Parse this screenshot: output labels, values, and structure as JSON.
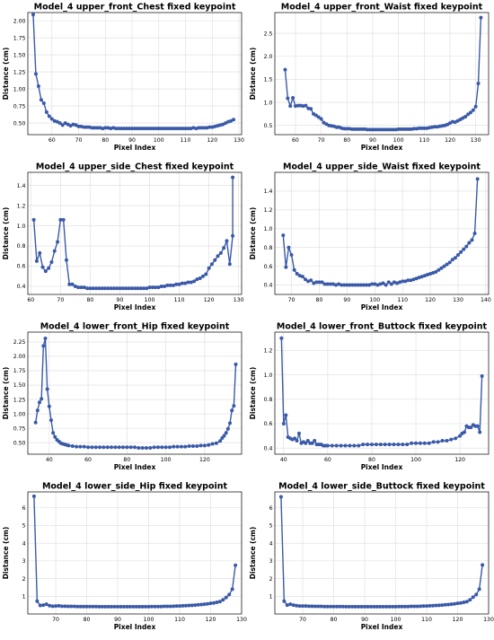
{
  "chart_data": [
    {
      "type": "line",
      "title": "Model_4 upper_front_Chest fixed keypoint",
      "xlabel": "Pixel Index",
      "ylabel": "Distance (cm)",
      "xlim": [
        51,
        131
      ],
      "ylim": [
        0.33,
        2.12
      ],
      "xticks": [
        50,
        60,
        70,
        80,
        90,
        100,
        110,
        120,
        130
      ],
      "yticks": [
        0.5,
        0.75,
        1.0,
        1.25,
        1.5,
        1.75,
        2.0
      ],
      "ytick_labels": [
        "0.50",
        "0.75",
        "1.00",
        "1.25",
        "1.50",
        "1.75",
        "2.00"
      ],
      "grid": true,
      "x": [
        53,
        54,
        55,
        56,
        57,
        58,
        59,
        60,
        61,
        62,
        63,
        64,
        65,
        66,
        67,
        68,
        69,
        70,
        71,
        72,
        73,
        74,
        75,
        76,
        77,
        78,
        79,
        80,
        81,
        82,
        83,
        84,
        85,
        86,
        87,
        88,
        89,
        90,
        91,
        92,
        93,
        94,
        95,
        96,
        97,
        98,
        99,
        100,
        101,
        102,
        103,
        104,
        105,
        106,
        107,
        108,
        109,
        110,
        111,
        112,
        113,
        114,
        115,
        116,
        117,
        118,
        119,
        120,
        121,
        122,
        123,
        124,
        125,
        126,
        127,
        128
      ],
      "y": [
        2.09,
        1.22,
        1.04,
        0.84,
        0.79,
        0.66,
        0.6,
        0.56,
        0.53,
        0.52,
        0.5,
        0.47,
        0.5,
        0.48,
        0.46,
        0.48,
        0.47,
        0.45,
        0.45,
        0.44,
        0.44,
        0.44,
        0.43,
        0.43,
        0.43,
        0.43,
        0.42,
        0.43,
        0.43,
        0.42,
        0.43,
        0.42,
        0.42,
        0.42,
        0.42,
        0.42,
        0.42,
        0.42,
        0.42,
        0.42,
        0.42,
        0.42,
        0.42,
        0.42,
        0.42,
        0.42,
        0.42,
        0.42,
        0.42,
        0.42,
        0.42,
        0.42,
        0.42,
        0.42,
        0.42,
        0.42,
        0.42,
        0.42,
        0.42,
        0.42,
        0.43,
        0.42,
        0.43,
        0.43,
        0.43,
        0.43,
        0.44,
        0.44,
        0.45,
        0.46,
        0.47,
        0.48,
        0.5,
        0.52,
        0.53,
        0.55
      ]
    },
    {
      "type": "line",
      "title": "Model_4 upper_front_Waist fixed keypoint",
      "xlabel": "Pixel Index",
      "ylabel": "Distance (cm)",
      "xlim": [
        52,
        135
      ],
      "ylim": [
        0.3,
        2.95
      ],
      "xticks": [
        60,
        70,
        80,
        90,
        100,
        110,
        120,
        130
      ],
      "yticks": [
        0.5,
        1.0,
        1.5,
        2.0,
        2.5
      ],
      "ytick_labels": [
        "0.5",
        "1.0",
        "1.5",
        "2.0",
        "2.5"
      ],
      "grid": true,
      "x": [
        56,
        57,
        58,
        59,
        60,
        61,
        62,
        63,
        64,
        65,
        66,
        67,
        68,
        69,
        70,
        71,
        72,
        73,
        74,
        75,
        76,
        77,
        78,
        79,
        80,
        81,
        82,
        83,
        84,
        85,
        86,
        87,
        88,
        89,
        90,
        91,
        92,
        93,
        94,
        95,
        96,
        97,
        98,
        99,
        100,
        101,
        102,
        103,
        104,
        105,
        106,
        107,
        108,
        109,
        110,
        111,
        112,
        113,
        114,
        115,
        116,
        117,
        118,
        119,
        120,
        121,
        122,
        123,
        124,
        125,
        126,
        127,
        128,
        129,
        130,
        131,
        132
      ],
      "y": [
        1.71,
        1.09,
        0.92,
        1.1,
        0.92,
        0.93,
        0.93,
        0.92,
        0.93,
        0.87,
        0.86,
        0.75,
        0.72,
        0.68,
        0.64,
        0.56,
        0.53,
        0.5,
        0.49,
        0.48,
        0.46,
        0.46,
        0.44,
        0.43,
        0.43,
        0.43,
        0.42,
        0.42,
        0.42,
        0.42,
        0.42,
        0.42,
        0.41,
        0.41,
        0.41,
        0.41,
        0.41,
        0.41,
        0.41,
        0.41,
        0.41,
        0.41,
        0.41,
        0.41,
        0.42,
        0.42,
        0.42,
        0.42,
        0.42,
        0.42,
        0.43,
        0.43,
        0.44,
        0.44,
        0.44,
        0.44,
        0.45,
        0.46,
        0.47,
        0.47,
        0.48,
        0.49,
        0.5,
        0.52,
        0.55,
        0.58,
        0.57,
        0.6,
        0.63,
        0.66,
        0.69,
        0.74,
        0.78,
        0.83,
        0.91,
        1.41,
        2.84
      ]
    },
    {
      "type": "line",
      "title": "Model_4 upper_side_Chest fixed keypoint",
      "xlabel": "Pixel Index",
      "ylabel": "Distance (cm)",
      "xlim": [
        59,
        131
      ],
      "ylim": [
        0.32,
        1.53
      ],
      "xticks": [
        60,
        70,
        80,
        90,
        100,
        110,
        120,
        130
      ],
      "yticks": [
        0.4,
        0.6,
        0.8,
        1.0,
        1.2,
        1.4
      ],
      "ytick_labels": [
        "0.4",
        "0.6",
        "0.8",
        "1.0",
        "1.2",
        "1.4"
      ],
      "grid": true,
      "x": [
        61,
        62,
        63,
        64,
        65,
        66,
        67,
        68,
        69,
        70,
        71,
        72,
        73,
        74,
        75,
        76,
        77,
        78,
        79,
        80,
        81,
        82,
        83,
        84,
        85,
        86,
        87,
        88,
        89,
        90,
        91,
        92,
        93,
        94,
        95,
        96,
        97,
        98,
        99,
        100,
        101,
        102,
        103,
        104,
        105,
        106,
        107,
        108,
        109,
        110,
        111,
        112,
        113,
        114,
        115,
        116,
        117,
        118,
        119,
        120,
        121,
        122,
        123,
        124,
        125,
        126,
        127,
        128
      ],
      "y": [
        1.06,
        0.65,
        0.73,
        0.59,
        0.55,
        0.58,
        0.64,
        0.75,
        0.84,
        1.06,
        1.06,
        0.66,
        0.42,
        0.42,
        0.4,
        0.39,
        0.39,
        0.39,
        0.38,
        0.38,
        0.38,
        0.38,
        0.38,
        0.38,
        0.38,
        0.38,
        0.38,
        0.38,
        0.38,
        0.38,
        0.38,
        0.38,
        0.38,
        0.38,
        0.38,
        0.38,
        0.38,
        0.38,
        0.38,
        0.39,
        0.39,
        0.39,
        0.39,
        0.4,
        0.4,
        0.41,
        0.41,
        0.41,
        0.42,
        0.42,
        0.43,
        0.43,
        0.44,
        0.44,
        0.45,
        0.47,
        0.48,
        0.5,
        0.52,
        0.58,
        0.62,
        0.66,
        0.7,
        0.73,
        0.78,
        0.85,
        0.62,
        0.9
      ],
      "y_last": 1.48
    },
    {
      "type": "line",
      "title": "Model_4 upper_side_Waist fixed keypoint",
      "xlabel": "Pixel Index",
      "ylabel": "Distance (cm)",
      "xlim": [
        64,
        141
      ],
      "ylim": [
        0.3,
        1.6
      ],
      "xticks": [
        70,
        80,
        90,
        100,
        110,
        120,
        130,
        140
      ],
      "yticks": [
        0.4,
        0.6,
        0.8,
        1.0,
        1.2,
        1.4
      ],
      "ytick_labels": [
        "0.4",
        "0.6",
        "0.8",
        "1.0",
        "1.2",
        "1.4"
      ],
      "grid": true,
      "x": [
        67,
        68,
        69,
        70,
        71,
        72,
        73,
        74,
        75,
        76,
        77,
        78,
        79,
        80,
        81,
        82,
        83,
        84,
        85,
        86,
        87,
        88,
        89,
        90,
        91,
        92,
        93,
        94,
        95,
        96,
        97,
        98,
        99,
        100,
        101,
        102,
        103,
        104,
        105,
        106,
        107,
        108,
        109,
        110,
        111,
        112,
        113,
        114,
        115,
        116,
        117,
        118,
        119,
        120,
        121,
        122,
        123,
        124,
        125,
        126,
        127,
        128,
        129,
        130,
        131,
        132,
        133,
        134,
        135,
        136,
        137
      ],
      "y": [
        0.93,
        0.59,
        0.8,
        0.72,
        0.56,
        0.52,
        0.5,
        0.49,
        0.46,
        0.44,
        0.45,
        0.42,
        0.43,
        0.43,
        0.43,
        0.41,
        0.41,
        0.41,
        0.41,
        0.4,
        0.41,
        0.4,
        0.4,
        0.4,
        0.4,
        0.4,
        0.4,
        0.4,
        0.4,
        0.4,
        0.4,
        0.4,
        0.41,
        0.41,
        0.4,
        0.41,
        0.42,
        0.4,
        0.43,
        0.41,
        0.43,
        0.42,
        0.43,
        0.44,
        0.44,
        0.45,
        0.45,
        0.46,
        0.47,
        0.48,
        0.49,
        0.5,
        0.51,
        0.52,
        0.53,
        0.54,
        0.56,
        0.58,
        0.6,
        0.62,
        0.64,
        0.67,
        0.69,
        0.72,
        0.75,
        0.78,
        0.81,
        0.85,
        0.88,
        0.95,
        1.53
      ]
    },
    {
      "type": "line",
      "title": "Model_4 lower_front_Hip fixed keypoint",
      "xlabel": "Pixel Index",
      "ylabel": "Distance (cm)",
      "xlim": [
        29,
        139
      ],
      "ylim": [
        0.3,
        2.42
      ],
      "xticks": [
        40,
        60,
        80,
        100,
        120
      ],
      "yticks": [
        0.5,
        0.75,
        1.0,
        1.25,
        1.5,
        1.75,
        2.0,
        2.25
      ],
      "ytick_labels": [
        "0.50",
        "0.75",
        "1.00",
        "1.25",
        "1.50",
        "1.75",
        "2.00",
        "2.25"
      ],
      "grid": true,
      "x": [
        33,
        34,
        35,
        36,
        37,
        38,
        39,
        40,
        41,
        42,
        43,
        44,
        45,
        46,
        47,
        48,
        49,
        50,
        52,
        54,
        56,
        58,
        60,
        62,
        64,
        66,
        68,
        70,
        72,
        74,
        76,
        78,
        80,
        82,
        84,
        86,
        88,
        90,
        92,
        94,
        96,
        98,
        100,
        102,
        104,
        106,
        108,
        110,
        112,
        114,
        116,
        118,
        120,
        122,
        124,
        126,
        128,
        129,
        130,
        131,
        132,
        133,
        134,
        135,
        136
      ],
      "y": [
        0.85,
        1.06,
        1.2,
        1.26,
        2.18,
        2.31,
        1.43,
        1.13,
        0.89,
        0.67,
        0.6,
        0.55,
        0.52,
        0.49,
        0.48,
        0.47,
        0.46,
        0.45,
        0.44,
        0.43,
        0.43,
        0.43,
        0.42,
        0.42,
        0.42,
        0.42,
        0.42,
        0.42,
        0.42,
        0.42,
        0.42,
        0.42,
        0.42,
        0.42,
        0.42,
        0.41,
        0.41,
        0.41,
        0.41,
        0.42,
        0.42,
        0.42,
        0.42,
        0.42,
        0.43,
        0.43,
        0.43,
        0.43,
        0.44,
        0.44,
        0.44,
        0.45,
        0.45,
        0.46,
        0.48,
        0.49,
        0.53,
        0.58,
        0.62,
        0.67,
        0.74,
        0.84,
        1.06,
        1.14,
        1.86
      ]
    },
    {
      "type": "line",
      "title": "Model_4 lower_front_Buttock fixed keypoint",
      "xlabel": "Pixel Index",
      "ylabel": "Distance (cm)",
      "xlim": [
        36,
        133
      ],
      "ylim": [
        0.35,
        1.35
      ],
      "xticks": [
        40,
        60,
        80,
        100,
        120
      ],
      "yticks": [
        0.4,
        0.6,
        0.8,
        1.0,
        1.2
      ],
      "ytick_labels": [
        "0.4",
        "0.6",
        "0.8",
        "1.0",
        "1.2"
      ],
      "grid": true,
      "x": [
        39,
        40,
        41,
        42,
        43,
        44,
        45,
        46,
        47,
        48,
        49,
        50,
        51,
        52,
        53,
        54,
        55,
        56,
        57,
        58,
        59,
        60,
        62,
        64,
        66,
        68,
        70,
        72,
        74,
        76,
        78,
        80,
        82,
        84,
        86,
        88,
        90,
        92,
        94,
        96,
        98,
        100,
        102,
        104,
        106,
        108,
        110,
        112,
        114,
        116,
        118,
        120,
        121,
        122,
        123,
        124,
        125,
        126,
        127,
        128,
        129,
        130
      ],
      "y": [
        1.3,
        0.6,
        0.67,
        0.49,
        0.48,
        0.47,
        0.48,
        0.46,
        0.52,
        0.44,
        0.45,
        0.44,
        0.46,
        0.44,
        0.44,
        0.46,
        0.43,
        0.43,
        0.43,
        0.42,
        0.42,
        0.42,
        0.42,
        0.42,
        0.42,
        0.42,
        0.42,
        0.42,
        0.42,
        0.43,
        0.43,
        0.43,
        0.43,
        0.43,
        0.43,
        0.43,
        0.43,
        0.43,
        0.43,
        0.43,
        0.44,
        0.44,
        0.44,
        0.44,
        0.44,
        0.45,
        0.45,
        0.46,
        0.46,
        0.47,
        0.48,
        0.5,
        0.52,
        0.53,
        0.58,
        0.57,
        0.57,
        0.59,
        0.58,
        0.58,
        0.53,
        0.99
      ]
    },
    {
      "type": "line",
      "title": "Model_4 lower_side_Hip fixed keypoint",
      "xlabel": "Pixel Index",
      "ylabel": "Distance (cm)",
      "xlim": [
        61,
        130
      ],
      "ylim": [
        0.0,
        6.9
      ],
      "xticks": [
        60,
        70,
        80,
        90,
        100,
        110,
        120,
        130
      ],
      "yticks": [
        1,
        2,
        3,
        4,
        5,
        6
      ],
      "ytick_labels": [
        "1",
        "2",
        "3",
        "4",
        "5",
        "6"
      ],
      "grid": true,
      "x": [
        63,
        64,
        65,
        66,
        67,
        68,
        69,
        70,
        71,
        72,
        73,
        74,
        75,
        76,
        77,
        78,
        79,
        80,
        81,
        82,
        83,
        84,
        85,
        86,
        87,
        88,
        89,
        90,
        91,
        92,
        93,
        94,
        95,
        96,
        97,
        98,
        99,
        100,
        101,
        102,
        103,
        104,
        105,
        106,
        107,
        108,
        109,
        110,
        111,
        112,
        113,
        114,
        115,
        116,
        117,
        118,
        119,
        120,
        121,
        122,
        123,
        124,
        125,
        126,
        127,
        128
      ],
      "y": [
        6.65,
        0.72,
        0.48,
        0.5,
        0.55,
        0.47,
        0.44,
        0.45,
        0.46,
        0.44,
        0.44,
        0.43,
        0.43,
        0.43,
        0.42,
        0.42,
        0.42,
        0.42,
        0.42,
        0.42,
        0.42,
        0.41,
        0.41,
        0.41,
        0.41,
        0.41,
        0.41,
        0.41,
        0.41,
        0.41,
        0.41,
        0.41,
        0.41,
        0.41,
        0.41,
        0.41,
        0.41,
        0.41,
        0.42,
        0.42,
        0.42,
        0.42,
        0.43,
        0.43,
        0.43,
        0.44,
        0.45,
        0.45,
        0.46,
        0.47,
        0.48,
        0.49,
        0.5,
        0.52,
        0.53,
        0.55,
        0.57,
        0.6,
        0.62,
        0.66,
        0.7,
        0.8,
        0.93,
        1.1,
        1.4,
        2.75
      ]
    },
    {
      "type": "line",
      "title": "Model_4 lower_side_Buttock fixed keypoint",
      "xlabel": "Pixel Index",
      "ylabel": "Distance (cm)",
      "xlim": [
        61,
        130
      ],
      "ylim": [
        0.0,
        6.9
      ],
      "xticks": [
        60,
        70,
        80,
        90,
        100,
        110,
        120,
        130
      ],
      "yticks": [
        1,
        2,
        3,
        4,
        5,
        6
      ],
      "ytick_labels": [
        "1",
        "2",
        "3",
        "4",
        "5",
        "6"
      ],
      "grid": true,
      "x": [
        63,
        64,
        65,
        66,
        67,
        68,
        69,
        70,
        71,
        72,
        73,
        74,
        75,
        76,
        77,
        78,
        79,
        80,
        81,
        82,
        83,
        84,
        85,
        86,
        87,
        88,
        89,
        90,
        91,
        92,
        93,
        94,
        95,
        96,
        97,
        98,
        99,
        100,
        101,
        102,
        103,
        104,
        105,
        106,
        107,
        108,
        109,
        110,
        111,
        112,
        113,
        114,
        115,
        116,
        117,
        118,
        119,
        120,
        121,
        122,
        123,
        124,
        125,
        126,
        127,
        128
      ],
      "y": [
        6.62,
        0.72,
        0.5,
        0.55,
        0.5,
        0.47,
        0.45,
        0.45,
        0.45,
        0.44,
        0.44,
        0.43,
        0.43,
        0.43,
        0.42,
        0.42,
        0.42,
        0.42,
        0.42,
        0.42,
        0.42,
        0.41,
        0.41,
        0.41,
        0.41,
        0.41,
        0.41,
        0.41,
        0.41,
        0.41,
        0.41,
        0.41,
        0.41,
        0.41,
        0.41,
        0.41,
        0.41,
        0.41,
        0.42,
        0.42,
        0.42,
        0.42,
        0.43,
        0.43,
        0.43,
        0.44,
        0.45,
        0.45,
        0.46,
        0.47,
        0.48,
        0.49,
        0.5,
        0.52,
        0.53,
        0.55,
        0.57,
        0.6,
        0.62,
        0.66,
        0.7,
        0.8,
        0.95,
        1.1,
        1.4,
        2.77
      ]
    }
  ]
}
